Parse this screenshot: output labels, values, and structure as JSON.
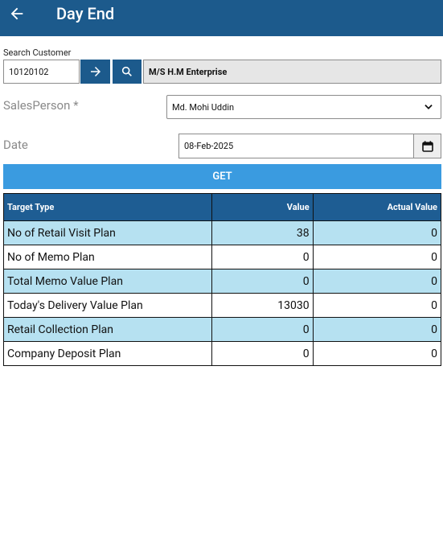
{
  "header": {
    "title": "Day End"
  },
  "form": {
    "search_label": "Search Customer",
    "customer_id": "10120102",
    "customer_name": "M/S H.M Enterprise",
    "salesperson_label": "SalesPerson *",
    "salesperson": "Md. Mohi Uddin",
    "date_label": "Date",
    "date": "08-Feb-2025",
    "get_button": "GET"
  },
  "table": {
    "columns": [
      "Target Type",
      "Value",
      "Actual Value"
    ],
    "rows": [
      [
        "No of Retail Visit Plan",
        38,
        0
      ],
      [
        "No of Memo Plan",
        0,
        0
      ],
      [
        "Total Memo Value Plan",
        0,
        0
      ],
      [
        "Today's Delivery Value Plan",
        13030,
        0
      ],
      [
        "Retail Collection Plan",
        0,
        0
      ],
      [
        "Company Deposit Plan",
        0,
        0
      ]
    ]
  }
}
